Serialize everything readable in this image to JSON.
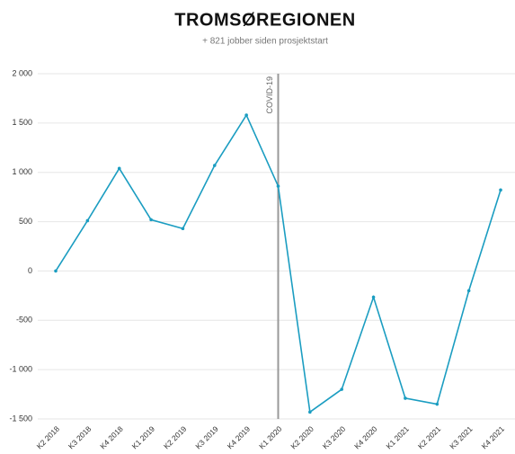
{
  "chart_data": {
    "type": "line",
    "title": "TROMSØREGIONEN",
    "subtitle": "+ 821 jobber siden prosjektstart",
    "categories": [
      "K2 2018",
      "K3 2018",
      "K4 2018",
      "K1 2019",
      "K2 2019",
      "K3 2019",
      "K4 2019",
      "K1 2020",
      "K2 2020",
      "K3 2020",
      "K4 2020",
      "K1 2021",
      "K2 2021",
      "K3 2021",
      "K4 2021"
    ],
    "series": [
      {
        "name": "Tromsøregionen",
        "color": "#1b9dc1",
        "values": [
          0,
          510,
          1040,
          520,
          430,
          1070,
          1580,
          860,
          -1430,
          -1200,
          -265,
          -1290,
          -1350,
          -200,
          821
        ]
      }
    ],
    "ylim": [
      -1500,
      2000
    ],
    "yticks": [
      {
        "value": -1500,
        "label": "-1 500"
      },
      {
        "value": -1000,
        "label": "-1 000"
      },
      -500,
      0,
      500,
      {
        "value": 1000,
        "label": "1 000"
      },
      {
        "value": 1500,
        "label": "1 500"
      },
      {
        "value": 2000,
        "label": "2 000"
      }
    ],
    "grid": true,
    "annotations": [
      {
        "label": "COVID-19",
        "x": "K1 2020"
      }
    ]
  }
}
